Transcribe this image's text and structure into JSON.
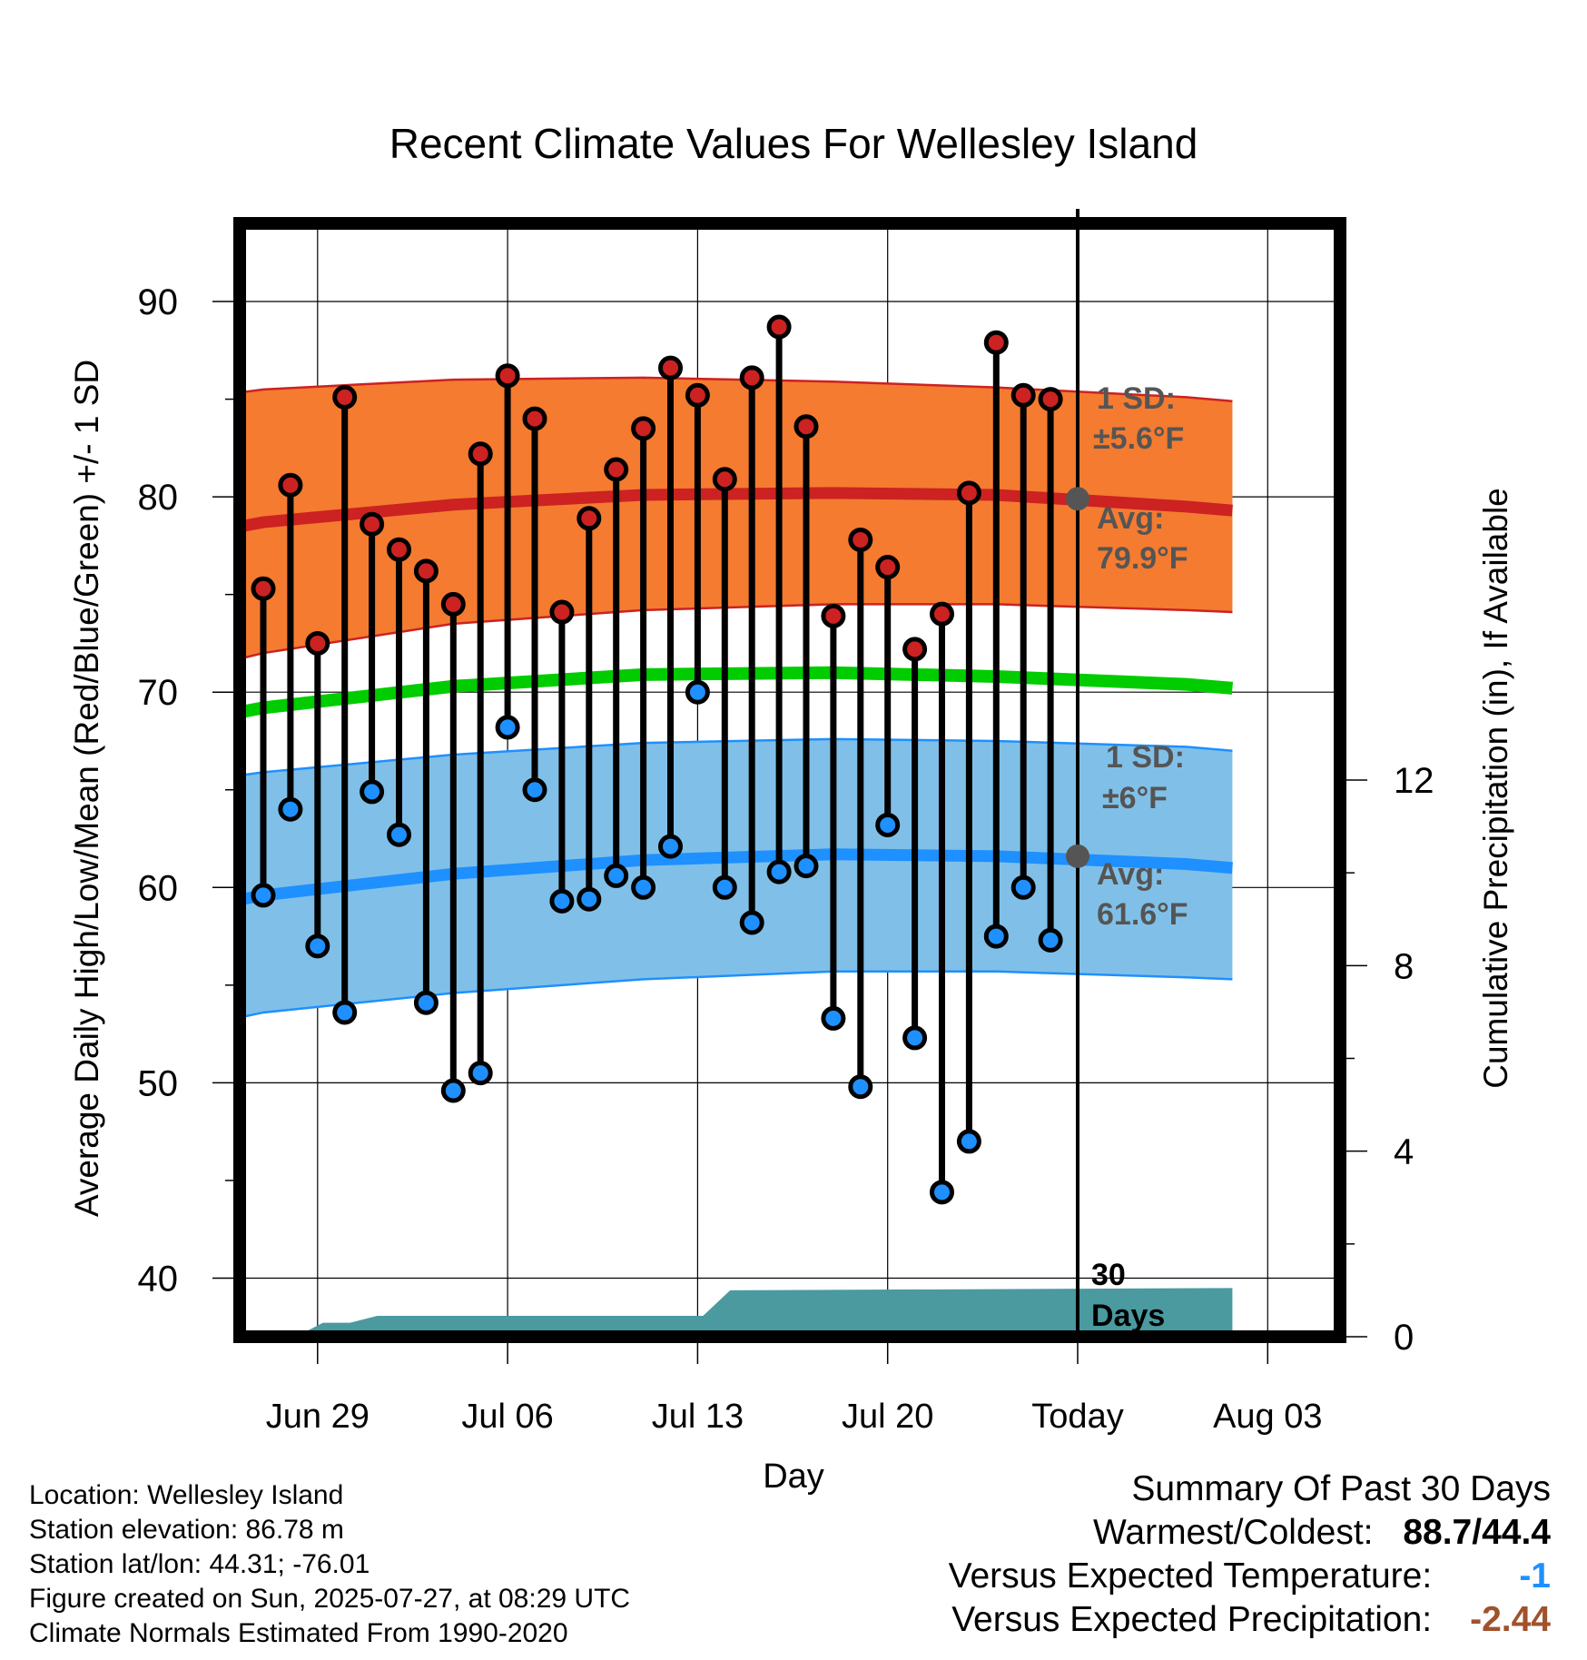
{
  "chart_data": {
    "type": "line",
    "title": "Recent Climate Values For Wellesley Island",
    "xlabel": "Day",
    "ylabel": "Average Daily High/Low/Mean (Red/Blue/Green) +/- 1 SD",
    "y2label": "Cumulative Precipitation (in), If Available",
    "ylim": [
      37,
      94
    ],
    "y2lim": [
      0,
      24
    ],
    "yticks": [
      40,
      50,
      60,
      70,
      80,
      90
    ],
    "y2ticks": [
      0,
      4,
      8,
      12
    ],
    "xticks": [
      "Jun 29",
      "Jul 06",
      "Jul 13",
      "Jul 20",
      "Today",
      "Aug 03"
    ],
    "today_label": "Today",
    "days_label_1": "30",
    "days_label_2": "Days",
    "days": [
      "Jun 27",
      "Jun 28",
      "Jun 29",
      "Jun 30",
      "Jul 01",
      "Jul 02",
      "Jul 03",
      "Jul 04",
      "Jul 05",
      "Jul 06",
      "Jul 07",
      "Jul 08",
      "Jul 09",
      "Jul 10",
      "Jul 11",
      "Jul 12",
      "Jul 13",
      "Jul 14",
      "Jul 15",
      "Jul 16",
      "Jul 17",
      "Jul 18",
      "Jul 19",
      "Jul 20",
      "Jul 21",
      "Jul 22",
      "Jul 23",
      "Jul 24",
      "Jul 25",
      "Jul 26"
    ],
    "series": [
      {
        "name": "High",
        "color": "#cc2222",
        "values": [
          75.3,
          80.6,
          72.5,
          85.1,
          78.6,
          77.3,
          76.2,
          74.5,
          82.2,
          86.2,
          84.0,
          74.1,
          78.9,
          81.4,
          83.5,
          86.6,
          85.2,
          80.9,
          86.1,
          88.7,
          83.6,
          73.9,
          77.8,
          76.4,
          72.2,
          74.0,
          80.2,
          87.9,
          85.2,
          85.0
        ]
      },
      {
        "name": "Low",
        "color": "#1e90ff",
        "values": [
          59.6,
          64.0,
          57.0,
          53.6,
          64.9,
          62.7,
          54.1,
          49.6,
          50.5,
          68.2,
          65.0,
          59.3,
          59.4,
          60.6,
          60.0,
          62.1,
          70.0,
          60.0,
          58.2,
          60.8,
          61.1,
          53.3,
          49.8,
          63.2,
          52.3,
          44.4,
          47.0,
          57.5,
          60.0,
          57.3
        ]
      }
    ],
    "normals": {
      "high_mean": [
        [
          -2.7,
          78.0
        ],
        [
          0,
          78.7
        ],
        [
          7,
          79.6
        ],
        [
          14,
          80.1
        ],
        [
          21,
          80.2
        ],
        [
          27,
          80.1
        ],
        [
          34,
          79.5
        ],
        [
          35.7,
          79.3
        ]
      ],
      "high_upper": [
        [
          -2.7,
          85.0
        ],
        [
          0,
          85.5
        ],
        [
          7,
          86.0
        ],
        [
          14,
          86.1
        ],
        [
          21,
          85.9
        ],
        [
          27,
          85.6
        ],
        [
          34,
          85.1
        ],
        [
          35.7,
          84.9
        ]
      ],
      "high_lower": [
        [
          -2.7,
          71.1
        ],
        [
          0,
          72.0
        ],
        [
          7,
          73.5
        ],
        [
          14,
          74.2
        ],
        [
          21,
          74.5
        ],
        [
          27,
          74.5
        ],
        [
          34,
          74.2
        ],
        [
          35.7,
          74.1
        ]
      ],
      "mean": [
        [
          -2.7,
          68.5
        ],
        [
          0,
          69.2
        ],
        [
          7,
          70.3
        ],
        [
          14,
          70.9
        ],
        [
          21,
          71.0
        ],
        [
          27,
          70.8
        ],
        [
          34,
          70.4
        ],
        [
          35.7,
          70.2
        ]
      ],
      "low_mean": [
        [
          -2.7,
          58.9
        ],
        [
          0,
          59.6
        ],
        [
          7,
          60.7
        ],
        [
          14,
          61.4
        ],
        [
          21,
          61.7
        ],
        [
          27,
          61.6
        ],
        [
          34,
          61.2
        ],
        [
          35.7,
          61.0
        ]
      ],
      "low_upper": [
        [
          -2.7,
          65.4
        ],
        [
          0,
          65.9
        ],
        [
          7,
          66.8
        ],
        [
          14,
          67.4
        ],
        [
          21,
          67.6
        ],
        [
          27,
          67.5
        ],
        [
          34,
          67.2
        ],
        [
          35.7,
          67.0
        ]
      ],
      "low_lower": [
        [
          -2.7,
          52.8
        ],
        [
          0,
          53.6
        ],
        [
          7,
          54.6
        ],
        [
          14,
          55.3
        ],
        [
          21,
          55.7
        ],
        [
          27,
          55.7
        ],
        [
          34,
          55.4
        ],
        [
          35.7,
          55.3
        ]
      ]
    },
    "precip_cumulative": [
      [
        -1.7,
        0
      ],
      [
        1.2,
        0
      ],
      [
        2.2,
        0.3
      ],
      [
        3.2,
        0.3
      ],
      [
        4.2,
        0.45
      ],
      [
        16.2,
        0.45
      ],
      [
        17.2,
        1.0
      ],
      [
        35.7,
        1.05
      ]
    ],
    "today_high_avg": 79.9,
    "today_low_avg": 61.6,
    "annotations": {
      "high_sd_label": "1 SD:",
      "high_sd_value": "±5.6°F",
      "high_avg_label": "Avg:",
      "high_avg_value": "79.9°F",
      "low_sd_label": "1 SD:",
      "low_sd_value": "±6°F",
      "low_avg_label": "Avg:",
      "low_avg_value": "61.6°F"
    },
    "colors": {
      "high_band": "#f47b30",
      "high_line": "#cc2222",
      "mean_line": "#00cc00",
      "low_band": "#80c0e8",
      "low_line": "#1e90ff",
      "precip": "#4a9aa0",
      "annotation": "#555555"
    },
    "grid": true
  },
  "info": {
    "location": "Location: Wellesley Island",
    "elevation": "Station elevation: 86.78 m",
    "latlon": "Station lat/lon: 44.31; -76.01",
    "created": "Figure created on Sun, 2025-07-27, at 08:29 UTC",
    "normals": "Climate Normals Estimated From 1990-2020"
  },
  "summary": {
    "title": "Summary Of Past 30 Days",
    "warm_cold_label": "Warmest/Coldest:",
    "warm_cold_value": "88.7/44.4",
    "temp_label": "Versus Expected Temperature:",
    "temp_value": "-1",
    "precip_label": "Versus Expected Precipitation:",
    "precip_value": "-2.44"
  }
}
